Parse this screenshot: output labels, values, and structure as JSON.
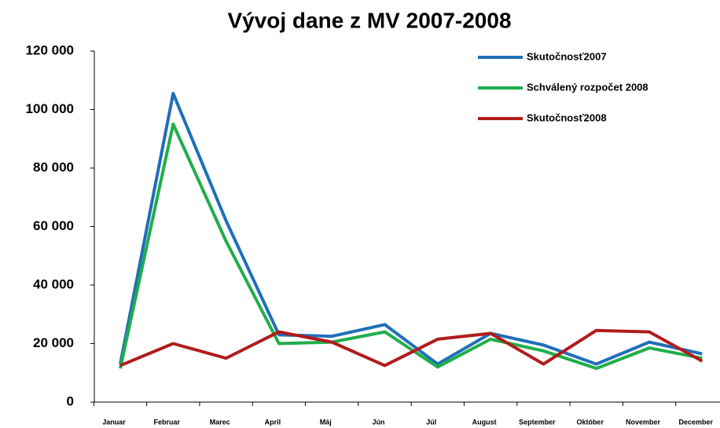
{
  "chart_data": {
    "type": "line",
    "title": "Vývoj dane z MV 2007-2008",
    "categories": [
      "Januar",
      "Februar",
      "Marec",
      "April",
      "Máj",
      "Jún",
      "Júl",
      "August",
      "September",
      "Október",
      "November",
      "December"
    ],
    "series": [
      {
        "name": "Skutočnosť2007",
        "color": "#1f6fb9",
        "values": [
          13000,
          105500,
          62000,
          23000,
          22500,
          26500,
          13000,
          23500,
          19500,
          13000,
          20500,
          16500
        ]
      },
      {
        "name": "Schválený rozpočet 2008",
        "color": "#1fae4a",
        "values": [
          11500,
          95000,
          55000,
          20000,
          20500,
          24000,
          12000,
          21500,
          17500,
          11500,
          18500,
          15000
        ]
      },
      {
        "name": "Skutočnosť2008",
        "color": "#b01c1c",
        "values": [
          12500,
          20000,
          15000,
          24000,
          20500,
          12500,
          21500,
          23500,
          13000,
          24500,
          24000,
          14000
        ]
      }
    ],
    "ylim": [
      0,
      120000
    ],
    "yticks": [
      0,
      {
        "value": 20000,
        "label": "20 000"
      },
      {
        "value": 40000,
        "label": "40 000"
      },
      {
        "value": 60000,
        "label": "60 000"
      },
      {
        "value": 80000,
        "label": "80 000"
      },
      {
        "value": 100000,
        "label": "100 000"
      },
      {
        "value": 120000,
        "label": "120 000"
      }
    ],
    "legend": "top-right"
  }
}
